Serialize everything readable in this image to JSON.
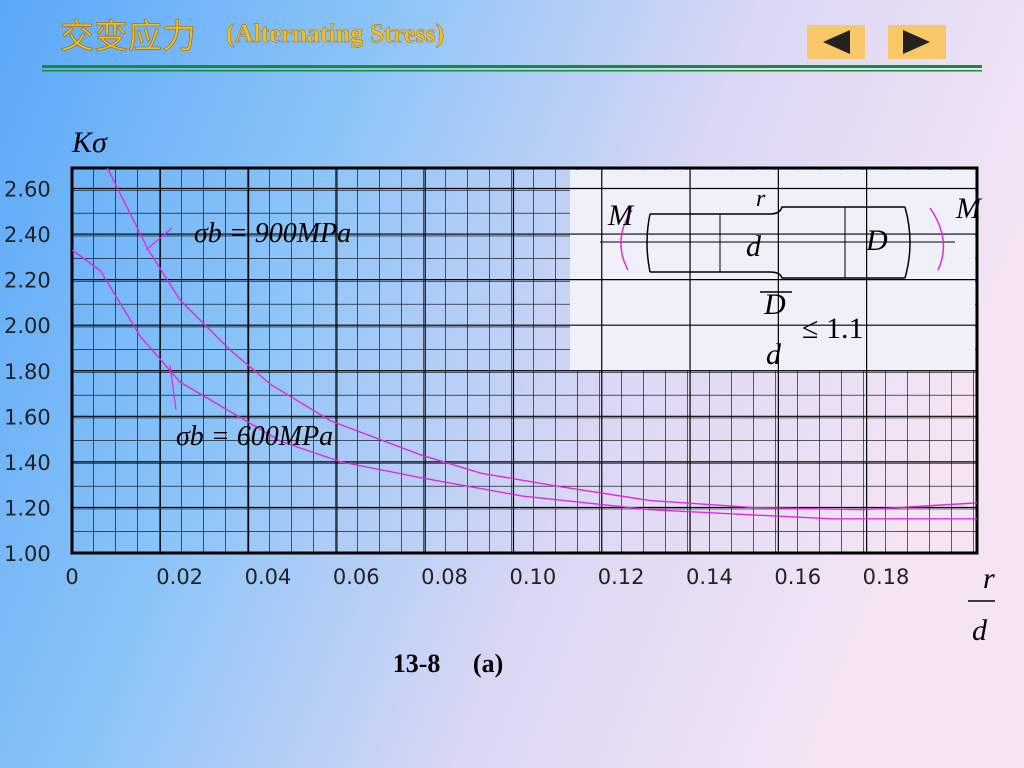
{
  "header": {
    "title_cn": "交变应力",
    "title_en": "(Alternating Stress)"
  },
  "chart_data": {
    "type": "line",
    "y_label": "Kσ",
    "x_label_num": "r",
    "x_label_den": "d",
    "caption": "13-8     (a)",
    "xlim": [
      0,
      0.205
    ],
    "ylim": [
      1.0,
      2.69
    ],
    "xticks": [
      0,
      0.02,
      0.04,
      0.06,
      0.08,
      {
        "value": 0.1,
        "label": "0.10"
      },
      0.12,
      0.14,
      0.16,
      0.18
    ],
    "yticks": [
      {
        "value": 2.6,
        "label": "2.60"
      },
      {
        "value": 2.4,
        "label": "2.40"
      },
      {
        "value": 2.2,
        "label": "2.20"
      },
      {
        "value": 2.0,
        "label": "2.00"
      },
      {
        "value": 1.8,
        "label": "1.80"
      },
      {
        "value": 1.6,
        "label": "1.60"
      },
      {
        "value": 1.4,
        "label": "1.40"
      },
      {
        "value": 1.2,
        "label": "1.20"
      },
      {
        "value": 1.0,
        "label": "1.00"
      }
    ],
    "series": [
      {
        "name": "σb = 900MPa",
        "color": "#e028e0",
        "x": [
          0.008,
          0.0173,
          0.0245,
          0.0359,
          0.045,
          0.0586,
          0.0791,
          0.0927,
          0.111,
          0.131,
          0.154,
          0.179,
          0.205
        ],
        "values": [
          2.69,
          2.33,
          2.11,
          1.89,
          1.74,
          1.58,
          1.43,
          1.35,
          1.29,
          1.23,
          1.2,
          1.19,
          1.22
        ]
      },
      {
        "name": "σb = 600MPa",
        "color": "#e028e0",
        "x": [
          0,
          0.0064,
          0.0155,
          0.0245,
          0.0359,
          0.0473,
          0.0609,
          0.0791,
          0.102,
          0.131,
          0.172,
          0.205
        ],
        "values": [
          2.33,
          2.24,
          1.95,
          1.75,
          1.62,
          1.49,
          1.4,
          1.33,
          1.25,
          1.19,
          1.15,
          1.15
        ]
      }
    ]
  },
  "diagram": {
    "m_left": "M",
    "m_right": "M",
    "r": "r",
    "d": "d",
    "D": "D",
    "ratio_num": "D",
    "ratio_den": "d",
    "ratio_rel": "≤ 1.1"
  }
}
